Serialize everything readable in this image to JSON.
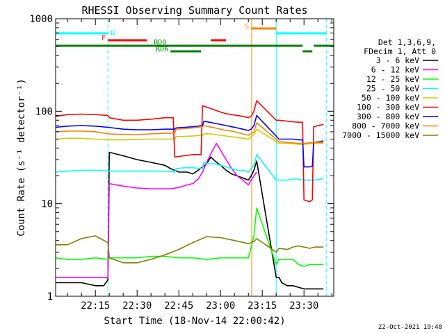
{
  "chart_data": {
    "type": "line",
    "title": "RHESSI Observing Summary Count Rates",
    "xlabel": "Start Time (18-Nov-14 22:00:42)",
    "ylabel": "Count Rate (s⁻¹ detector⁻¹)",
    "y_scale": "log",
    "ylim": [
      1,
      1000
    ],
    "xlim_minutes_after_2200": [
      0.7,
      100.7
    ],
    "x_ticks": [
      "22:15",
      "22:30",
      "22:45",
      "23:00",
      "23:15",
      "23:30"
    ],
    "y_ticks": [
      "1",
      "10",
      "100",
      "1000"
    ],
    "grid": false,
    "legend_position": "right",
    "legend_header": [
      "Det 1,3,6,9,",
      "FDecim 1, Att 0"
    ],
    "footer": "22-Oct-2021 19:48",
    "flags": [
      {
        "label": "N",
        "color": "#00ffff",
        "segments": [
          [
            0.7,
            19.5
          ],
          [
            80,
            98
          ]
        ]
      },
      {
        "label": "F",
        "color": "#ff0000",
        "segments": [
          [
            19.5,
            33.5
          ],
          [
            56.5,
            62
          ]
        ]
      },
      {
        "label": "S",
        "color": "#ff8000",
        "segments": [
          [
            71,
            80
          ]
        ]
      },
      {
        "label": "RD0",
        "color": "#008000",
        "segments": [
          [
            0.7,
            89.5
          ],
          [
            93.5,
            100.7
          ]
        ]
      },
      {
        "label": "RD6",
        "color": "#008000",
        "segments": [
          [
            42,
            53
          ],
          [
            89.5,
            93
          ]
        ]
      }
    ],
    "vlines": [
      {
        "x": 0.7,
        "color": "#00ffff",
        "style": "solid"
      },
      {
        "x": 19.5,
        "color": "#00ffff",
        "style": "dashed"
      },
      {
        "x": 71.2,
        "color": "#ff8000",
        "style": "solid"
      },
      {
        "x": 80,
        "color": "#00ffff",
        "style": "solid"
      },
      {
        "x": 98,
        "color": "#00ffff",
        "style": "dashed"
      }
    ],
    "series": [
      {
        "name": "3 - 6 keV",
        "color": "#000000",
        "x": [
          0.7,
          5,
          10,
          15,
          18,
          19.5,
          20,
          25,
          30,
          35,
          40,
          42,
          45,
          48,
          50,
          52,
          53.5,
          55,
          56.5,
          58,
          60,
          62,
          64,
          66,
          68,
          70,
          71,
          72,
          73,
          80,
          81,
          82,
          84,
          85,
          86,
          90,
          93,
          96,
          97
        ],
        "y": [
          1.4,
          1.4,
          1.4,
          1.3,
          1.3,
          1.5,
          36,
          33,
          30,
          28,
          26,
          24,
          22,
          22,
          21,
          23,
          25,
          27,
          32,
          29,
          26,
          23,
          21,
          20,
          19,
          18,
          20,
          23,
          29,
          1.6,
          1.6,
          1.4,
          1.3,
          1.3,
          1.3,
          1.2,
          1.2,
          1.2,
          1.2
        ]
      },
      {
        "name": "6 - 12 keV",
        "color": "#ff00ff",
        "x": [
          0.7,
          5,
          10,
          15,
          18,
          19.5,
          20,
          25,
          30,
          35,
          40,
          42,
          45,
          48,
          50,
          52,
          53.5,
          55,
          57,
          58.5,
          60,
          62,
          64,
          66,
          68,
          70,
          71,
          72,
          73
        ],
        "y": [
          1.6,
          1.6,
          1.6,
          1.6,
          1.6,
          1.6,
          16.5,
          15.5,
          14.8,
          14.5,
          14.5,
          14.5,
          15,
          16,
          16.5,
          18.5,
          22,
          28,
          37,
          45,
          38,
          30,
          24,
          20,
          18,
          16,
          18,
          20,
          22
        ]
      },
      {
        "name": "12 - 25 keV",
        "color": "#00ff00",
        "x": [
          0.7,
          5,
          10,
          15,
          19.5,
          20,
          25,
          30,
          35,
          40,
          45,
          50,
          55,
          60,
          65,
          70,
          72,
          73,
          80,
          81,
          84,
          86,
          88,
          90,
          92,
          94,
          96,
          97
        ],
        "y": [
          2.6,
          2.5,
          2.5,
          2.6,
          2.5,
          2.6,
          2.6,
          2.6,
          2.7,
          2.7,
          2.6,
          2.6,
          2.5,
          2.6,
          2.6,
          2.6,
          4.5,
          9,
          2.2,
          2.5,
          2.5,
          2.5,
          2.2,
          2.1,
          2.2,
          2.2,
          2.2,
          2.2
        ]
      },
      {
        "name": "25 - 50 keV",
        "color": "#00ffff",
        "x": [
          0.7,
          5,
          10,
          15,
          19.5,
          20,
          25,
          30,
          35,
          40,
          43.5,
          44,
          47,
          50,
          53.5,
          54,
          56,
          58,
          60,
          62,
          64,
          66,
          68,
          70,
          72,
          73,
          80,
          81,
          84,
          86,
          88,
          90,
          92,
          94,
          96,
          97
        ],
        "y": [
          22,
          22.5,
          23,
          23,
          22.5,
          22.5,
          22.5,
          22.5,
          22.5,
          22.5,
          22,
          24,
          24.5,
          24.5,
          24,
          28,
          27,
          27,
          26,
          25,
          24,
          23,
          23,
          22,
          26,
          34,
          18,
          18,
          18,
          18.5,
          18.5,
          18,
          18,
          18,
          18.5,
          18.5
        ]
      },
      {
        "name": "50 - 100 keV",
        "color": "#cccc00",
        "x": [
          0.7,
          5,
          10,
          15,
          19.5,
          25,
          30,
          35,
          40,
          43.5,
          44,
          47,
          50,
          53.5,
          54,
          56,
          58,
          60,
          64,
          68,
          70,
          72,
          73,
          81,
          84,
          86,
          88,
          90,
          92,
          94,
          96,
          97
        ],
        "y": [
          50,
          51,
          51,
          50,
          49,
          49,
          49.5,
          50,
          50,
          50,
          53,
          53.5,
          54,
          55,
          57,
          57,
          56,
          55,
          53,
          51,
          50,
          56,
          64,
          45,
          45,
          44.5,
          44,
          44,
          44.5,
          45,
          45,
          45
        ]
      },
      {
        "name": "100 - 300 keV",
        "color": "#ff0000",
        "x": [
          0.7,
          5,
          10,
          15,
          19.5,
          20,
          25,
          30,
          35,
          40,
          43,
          43.5,
          47,
          50,
          53,
          53.5,
          56,
          58,
          60,
          62,
          64,
          66,
          68,
          70,
          71,
          72,
          73,
          80,
          81,
          84,
          86,
          88,
          89.5,
          90,
          92,
          93,
          93.5,
          96,
          97
        ],
        "y": [
          88,
          92,
          93,
          92,
          90,
          85,
          80,
          80,
          82,
          85,
          85,
          32,
          33,
          34,
          34,
          115,
          108,
          103,
          98,
          94,
          92,
          90,
          88,
          85,
          88,
          100,
          130,
          80,
          80,
          78,
          77,
          76,
          76,
          11,
          10.5,
          11,
          68,
          71,
          72
        ]
      },
      {
        "name": "300 - 800 keV",
        "color": "#0000ff",
        "x": [
          0.7,
          5,
          10,
          15,
          19.5,
          25,
          30,
          35,
          40,
          43.5,
          44,
          47,
          50,
          53.5,
          54,
          56,
          58,
          60,
          62,
          64,
          66,
          68,
          70,
          71,
          72,
          73,
          81,
          84,
          86,
          88,
          89.5,
          90,
          92,
          93,
          93.5,
          96,
          97
        ],
        "y": [
          67,
          69,
          70,
          69,
          67,
          64,
          63,
          63,
          64,
          64,
          66,
          67,
          68,
          70,
          78,
          76,
          74,
          72,
          70,
          68,
          66,
          64,
          62,
          64,
          70,
          90,
          50,
          50,
          50,
          49,
          49,
          25,
          25,
          25.5,
          46,
          47,
          48
        ]
      },
      {
        "name": "800 - 7000 keV",
        "color": "#ff8000",
        "x": [
          0.7,
          5,
          10,
          15,
          19.5,
          25,
          30,
          35,
          40,
          43.5,
          44,
          47,
          50,
          53.5,
          54,
          56,
          58,
          60,
          62,
          64,
          66,
          68,
          70,
          72,
          73,
          81,
          84,
          86,
          88,
          90,
          92,
          94,
          96,
          97
        ],
        "y": [
          60,
          61,
          61,
          60,
          57,
          56,
          56,
          57,
          58,
          58,
          64,
          65,
          66,
          68,
          70,
          68,
          66,
          64,
          62,
          61,
          59,
          57,
          55,
          60,
          75,
          47,
          46,
          45.5,
          45,
          45,
          45.5,
          46,
          46,
          46
        ]
      },
      {
        "name": "7000 - 15000 keV",
        "color": "#808000",
        "x": [
          0.7,
          5,
          10,
          15,
          19.5,
          20,
          25,
          30,
          35,
          40,
          45,
          50,
          55,
          60,
          65,
          70,
          72,
          73,
          80,
          81,
          84,
          86,
          88,
          90,
          92,
          94,
          96,
          97
        ],
        "y": [
          3.6,
          3.6,
          4.2,
          4.5,
          3.8,
          2.6,
          2.3,
          2.3,
          2.5,
          2.8,
          3.2,
          3.8,
          4.4,
          4.3,
          4.0,
          3.7,
          3.9,
          4.2,
          3.0,
          3.3,
          3.2,
          3.4,
          3.5,
          3.4,
          3.3,
          3.4,
          3.4,
          3.4
        ]
      }
    ]
  }
}
